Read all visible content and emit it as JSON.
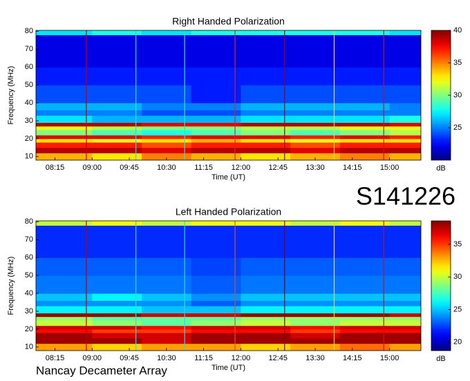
{
  "chart_data": [
    {
      "type": "heatmap",
      "title": "Right Handed Polarization",
      "x_label": "Time (UT)",
      "y_label": "Frequency (MHz)",
      "colorbar_label": "dB",
      "colormap": "jet",
      "xlim": [
        472,
        938
      ],
      "ylim": [
        8,
        80.5
      ],
      "xticks": [
        {
          "value": 495,
          "label": "08:15"
        },
        {
          "value": 540,
          "label": "09:00"
        },
        {
          "value": 585,
          "label": "09:45"
        },
        {
          "value": 630,
          "label": "10:30"
        },
        {
          "value": 675,
          "label": "11:15"
        },
        {
          "value": 720,
          "label": "12:00"
        },
        {
          "value": 765,
          "label": "12:45"
        },
        {
          "value": 810,
          "label": "13:30"
        },
        {
          "value": 855,
          "label": "14:15"
        },
        {
          "value": 900,
          "label": "15:00"
        }
      ],
      "yticks": [
        10,
        20,
        30,
        40,
        50,
        60,
        70,
        80
      ],
      "clim": [
        20,
        40
      ],
      "cticks": [
        25,
        30,
        35,
        40
      ],
      "x_edges": [
        472,
        540,
        600,
        660,
        720,
        780,
        840,
        900,
        938
      ],
      "y_edges": [
        8,
        12,
        15,
        18,
        20,
        22,
        25,
        27,
        29,
        33,
        36,
        40,
        50,
        60,
        70,
        78,
        80.5
      ],
      "z": [
        [
          34,
          33,
          35,
          34,
          33,
          34,
          35,
          34
        ],
        [
          39,
          39,
          38,
          39,
          39,
          38,
          39,
          39
        ],
        [
          37,
          37,
          36,
          37,
          37,
          36,
          37,
          37
        ],
        [
          33,
          32,
          33,
          34,
          33,
          32,
          33,
          33
        ],
        [
          38,
          38,
          37,
          38,
          38,
          37,
          38,
          37
        ],
        [
          30,
          29,
          28,
          29,
          30,
          29,
          30,
          31
        ],
        [
          32,
          31,
          30,
          30,
          31,
          31,
          32,
          32
        ],
        [
          39,
          39,
          38,
          38,
          39,
          39,
          39,
          38
        ],
        [
          27,
          26,
          26,
          26,
          27,
          27,
          27,
          28
        ],
        [
          25,
          25,
          24,
          24,
          25,
          25,
          25,
          25
        ],
        [
          26,
          26,
          25,
          25,
          26,
          26,
          26,
          25
        ],
        [
          24,
          24,
          24,
          23,
          24,
          24,
          24,
          24
        ],
        [
          23,
          23,
          23,
          23,
          23,
          23,
          23,
          23
        ],
        [
          22,
          22,
          22,
          22,
          22,
          22,
          22,
          22
        ],
        [
          22,
          22,
          22,
          22,
          22,
          22,
          22,
          22
        ],
        [
          27,
          28,
          27,
          28,
          28,
          28,
          28,
          27
        ]
      ],
      "vlines": [
        {
          "x": 533,
          "color": "#c00000"
        },
        {
          "x": 593,
          "color": "#40d0e0"
        },
        {
          "x": 652,
          "color": "#40e0b0"
        },
        {
          "x": 713,
          "color": "#e02020"
        },
        {
          "x": 773,
          "color": "#a00000"
        },
        {
          "x": 833,
          "color": "#f0d040"
        },
        {
          "x": 893,
          "color": "#d01010"
        }
      ]
    },
    {
      "type": "heatmap",
      "title": "Left Handed Polarization",
      "x_label": "Time (UT)",
      "y_label": "Frequency (MHz)",
      "colorbar_label": "dB",
      "colormap": "jet",
      "xlim": [
        472,
        938
      ],
      "ylim": [
        8,
        80.5
      ],
      "xticks": [
        {
          "value": 495,
          "label": "08:15"
        },
        {
          "value": 540,
          "label": "09:00"
        },
        {
          "value": 585,
          "label": "09:45"
        },
        {
          "value": 630,
          "label": "10:30"
        },
        {
          "value": 675,
          "label": "11:15"
        },
        {
          "value": 720,
          "label": "12:00"
        },
        {
          "value": 765,
          "label": "12:45"
        },
        {
          "value": 810,
          "label": "13:30"
        },
        {
          "value": 855,
          "label": "14:15"
        },
        {
          "value": 900,
          "label": "15:00"
        }
      ],
      "yticks": [
        10,
        20,
        30,
        40,
        50,
        60,
        70,
        80
      ],
      "clim": [
        18.7,
        38.6
      ],
      "cticks": [
        20,
        25,
        30,
        35
      ],
      "x_edges": [
        472,
        540,
        600,
        660,
        720,
        780,
        840,
        900,
        938
      ],
      "y_edges": [
        8,
        12,
        15,
        18,
        20,
        22,
        25,
        27,
        29,
        33,
        36,
        40,
        50,
        60,
        70,
        78,
        80.5
      ],
      "z": [
        [
          33,
          32,
          33,
          33,
          32,
          33,
          34,
          33
        ],
        [
          38,
          38,
          37,
          38,
          38,
          38,
          38,
          38
        ],
        [
          38,
          37,
          37,
          38,
          38,
          37,
          38,
          38
        ],
        [
          36,
          35,
          35,
          36,
          36,
          35,
          36,
          36
        ],
        [
          37,
          37,
          36,
          37,
          37,
          36,
          37,
          37
        ],
        [
          30,
          29,
          28,
          29,
          30,
          29,
          30,
          30
        ],
        [
          29,
          28,
          28,
          28,
          29,
          29,
          29,
          29
        ],
        [
          38,
          38,
          37,
          37,
          38,
          38,
          38,
          37
        ],
        [
          26,
          26,
          25,
          25,
          26,
          26,
          26,
          26
        ],
        [
          24,
          24,
          24,
          23,
          24,
          24,
          24,
          24
        ],
        [
          25,
          26,
          25,
          24,
          25,
          25,
          25,
          25
        ],
        [
          23.5,
          23.5,
          23.5,
          23,
          23.5,
          23.5,
          23.5,
          23.5
        ],
        [
          23,
          23,
          23,
          22.5,
          23,
          23,
          23,
          23
        ],
        [
          22,
          22,
          22,
          22,
          22,
          22,
          22,
          22
        ],
        [
          22,
          22,
          22,
          22,
          22,
          22,
          22,
          22
        ],
        [
          30,
          31,
          30,
          31,
          31,
          30,
          31,
          30
        ]
      ],
      "vlines": [
        {
          "x": 533,
          "color": "#c00000"
        },
        {
          "x": 593,
          "color": "#40d0e0"
        },
        {
          "x": 652,
          "color": "#40d0e0"
        },
        {
          "x": 713,
          "color": "#e05020"
        },
        {
          "x": 773,
          "color": "#800000"
        },
        {
          "x": 833,
          "color": "#f0d040"
        },
        {
          "x": 893,
          "color": "#d01010"
        }
      ]
    }
  ],
  "dataset_id": "S141226",
  "instrument": "Nancay Decameter Array"
}
